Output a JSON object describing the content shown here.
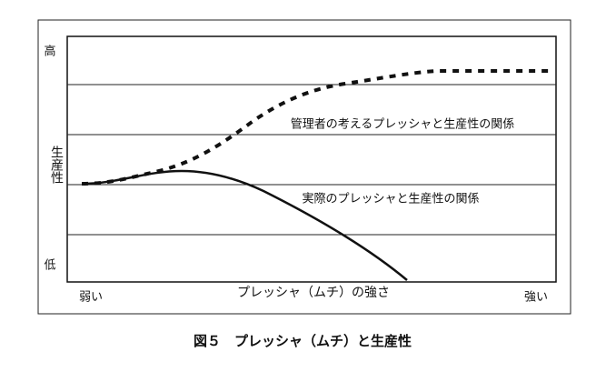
{
  "axis": {
    "y_high": "高",
    "y_label": "生産性",
    "y_low": "低",
    "x_label": "プレッシャ（ムチ）の強さ",
    "x_low": "弱い",
    "x_high": "強い"
  },
  "annotations": [
    "管理者の考えるプレッシャと生産性の関係",
    "実際のプレッシャと生産性の関係"
  ],
  "caption": "図５　プレッシャ（ムチ）と生産性"
}
